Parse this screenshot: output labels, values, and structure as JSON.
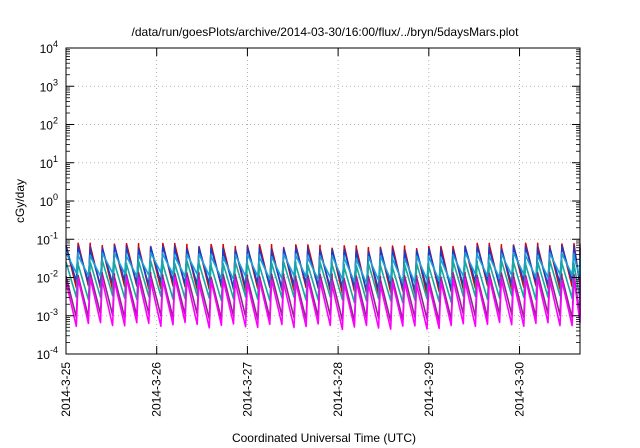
{
  "chart_data": {
    "type": "line",
    "title": "/data/run/goesPlots/archive/2014-03-30/16:00/flux/../bryn/5daysMars.plot",
    "xlabel": "Coordinated Universal Time (UTC)",
    "ylabel": "cGy/day",
    "x_range": [
      "2014-03-25T00:00",
      "2014-03-30T16:00"
    ],
    "y_range": [
      0.0001,
      10000
    ],
    "y_scale": "log",
    "grid": true,
    "legend": "none",
    "x_ticks": [
      "2014-3-25",
      "2014-3-26",
      "2014-3-27",
      "2014-3-28",
      "2014-3-29",
      "2014-3-30"
    ],
    "y_ticks": [
      {
        "base": "10",
        "exp": "-4"
      },
      {
        "base": "10",
        "exp": "-3"
      },
      {
        "base": "10",
        "exp": "-2"
      },
      {
        "base": "10",
        "exp": "-1"
      },
      {
        "base": "10",
        "exp": "0"
      },
      {
        "base": "10",
        "exp": "1"
      },
      {
        "base": "10",
        "exp": "2"
      },
      {
        "base": "10",
        "exp": "3"
      },
      {
        "base": "10",
        "exp": "4"
      }
    ],
    "sawtooth_period_hours": 3.2,
    "series": [
      {
        "color": "#e00000",
        "peak_values": [
          0.07,
          0.065,
          0.06,
          0.07
        ],
        "trough_values": [
          0.0055,
          0.005,
          0.004,
          0.0055
        ]
      },
      {
        "color": "#1a3cc8",
        "peak_values": [
          0.06,
          0.055,
          0.05,
          0.06
        ],
        "trough_values": [
          0.007,
          0.006,
          0.005,
          0.007
        ]
      },
      {
        "color": "#1b9fd6",
        "peak_values": [
          0.04,
          0.037,
          0.033,
          0.04
        ],
        "trough_values": [
          0.012,
          0.01,
          0.008,
          0.011
        ]
      },
      {
        "color": "#19a8a0",
        "peak_values": [
          0.025,
          0.023,
          0.021,
          0.025
        ],
        "trough_values": [
          0.003,
          0.0028,
          0.0025,
          0.003
        ]
      },
      {
        "color": "#8a2a8a",
        "peak_values": [
          0.012,
          0.011,
          0.01,
          0.012
        ],
        "trough_values": [
          0.001,
          0.0009,
          0.0008,
          0.001
        ]
      },
      {
        "color": "#ff00ff",
        "peak_values": [
          0.009,
          0.008,
          0.007,
          0.009
        ],
        "trough_values": [
          0.0006,
          0.00055,
          0.0005,
          0.0006
        ]
      }
    ]
  }
}
